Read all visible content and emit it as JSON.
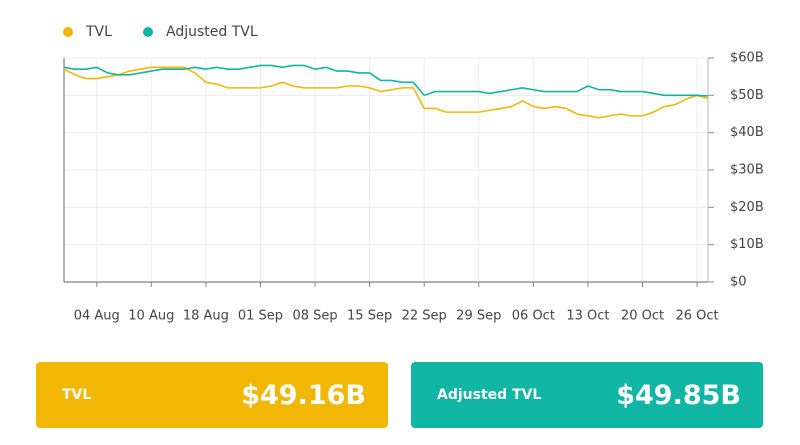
{
  "chart_data": {
    "type": "line",
    "categories": [
      null,
      null,
      null,
      "04 Aug",
      null,
      null,
      null,
      null,
      "10 Aug",
      null,
      null,
      null,
      null,
      "18 Aug",
      null,
      null,
      null,
      null,
      "01 Sep",
      null,
      null,
      null,
      null,
      "08 Sep",
      null,
      null,
      null,
      null,
      "15 Sep",
      null,
      null,
      null,
      null,
      "22 Sep",
      null,
      null,
      null,
      null,
      "29 Sep",
      null,
      null,
      null,
      null,
      "06 Oct",
      null,
      null,
      null,
      null,
      "13 Oct",
      null,
      null,
      null,
      null,
      "20 Oct",
      null,
      null,
      null,
      null,
      "26 Oct",
      null
    ],
    "series": [
      {
        "name": "TVL",
        "color": "#f2b705",
        "values": [
          57,
          55.5,
          54.5,
          54.5,
          55,
          55.5,
          56.5,
          57,
          57.5,
          57.5,
          57.5,
          57.5,
          56,
          53.5,
          53,
          52,
          52,
          52,
          52,
          52.5,
          53.5,
          52.5,
          52,
          52,
          52,
          52,
          52.5,
          52.5,
          52,
          51,
          51.5,
          52,
          52,
          46.5,
          46.5,
          45.5,
          45.5,
          45.5,
          45.5,
          46,
          46.5,
          47,
          48.5,
          47,
          46.5,
          47,
          46.5,
          45,
          44.5,
          44,
          44.5,
          45,
          44.5,
          44.5,
          45.5,
          47,
          47.5,
          49,
          50,
          49.16
        ]
      },
      {
        "name": "Adjusted TVL",
        "color": "#10b5a3",
        "values": [
          57.5,
          57,
          57,
          57.5,
          56,
          55.5,
          55.5,
          56,
          56.5,
          57,
          57,
          57,
          57.5,
          57,
          57.5,
          57,
          57,
          57.5,
          58,
          58,
          57.5,
          58,
          58,
          57,
          57.5,
          56.5,
          56.5,
          56,
          56,
          54,
          54,
          53.5,
          53.5,
          50,
          51,
          51,
          51,
          51,
          51,
          50.5,
          51,
          51.5,
          52,
          51.5,
          51,
          51,
          51,
          51,
          52.5,
          51.5,
          51.5,
          51,
          51,
          51,
          50.5,
          50,
          50,
          50,
          50,
          49.85
        ]
      }
    ],
    "ylim": [
      0,
      60
    ],
    "yticks": [
      {
        "value": 0,
        "label": "$0"
      },
      {
        "value": 10,
        "label": "$10B"
      },
      {
        "value": 20,
        "label": "$20B"
      },
      {
        "value": 30,
        "label": "$30B"
      },
      {
        "value": 40,
        "label": "$40B"
      },
      {
        "value": 50,
        "label": "$50B"
      },
      {
        "value": 60,
        "label": "$60B"
      }
    ],
    "grid": true,
    "legend": "top-left"
  },
  "cards": [
    {
      "label": "TVL",
      "value": "$49.16B",
      "color": "#f2b705"
    },
    {
      "label": "Adjusted TVL",
      "value": "$49.85B",
      "color": "#10b5a3"
    }
  ]
}
